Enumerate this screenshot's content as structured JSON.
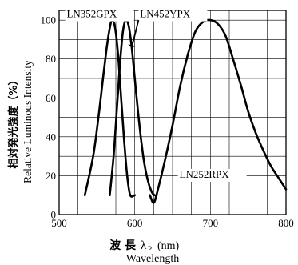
{
  "chart_data": {
    "type": "line",
    "title": "",
    "xlabel_jp": "波 長",
    "xlabel_symbol": "λ",
    "xlabel_symbol_sub": "P",
    "xlabel_unit": "(nm)",
    "xlabel_en": "Wavelength",
    "ylabel_jp": "相対発光強度（%）",
    "ylabel_en": "Relative Luminous Intensity",
    "xlim": [
      500,
      800
    ],
    "ylim": [
      0,
      105
    ],
    "xticks": [
      "500",
      "600",
      "700",
      "800"
    ],
    "yticks": [
      "0",
      "20",
      "40",
      "60",
      "80",
      "100"
    ],
    "grid": true,
    "series": [
      {
        "name": "LN352GPX",
        "x": [
          534,
          545,
          552,
          558,
          563,
          567,
          570,
          574,
          578,
          582,
          586,
          590,
          594,
          600
        ],
        "y": [
          10,
          30,
          50,
          70,
          86,
          96,
          100,
          96,
          82,
          60,
          38,
          20,
          10,
          10
        ]
      },
      {
        "name": "LN452YPX",
        "x": [
          567,
          572,
          576,
          580,
          584,
          588,
          592,
          596,
          600,
          604,
          608,
          612,
          617,
          622,
          626,
          629
        ],
        "y": [
          10,
          30,
          52,
          75,
          93,
          100,
          97,
          86,
          70,
          54,
          40,
          28,
          18,
          12,
          10,
          10
        ]
      },
      {
        "name": "LN252RPX",
        "x": [
          620,
          625,
          630,
          640,
          650,
          660,
          670,
          680,
          690,
          700,
          710,
          720,
          730,
          740,
          750,
          760,
          770,
          780,
          790,
          800
        ],
        "y": [
          10,
          6,
          12,
          28,
          46,
          66,
          82,
          94,
          99,
          100,
          98,
          92,
          80,
          67,
          53,
          42,
          33,
          25,
          19,
          13
        ]
      }
    ],
    "annotations": [
      "LN352GPX",
      "LN452YPX",
      "LN252RPX"
    ]
  }
}
